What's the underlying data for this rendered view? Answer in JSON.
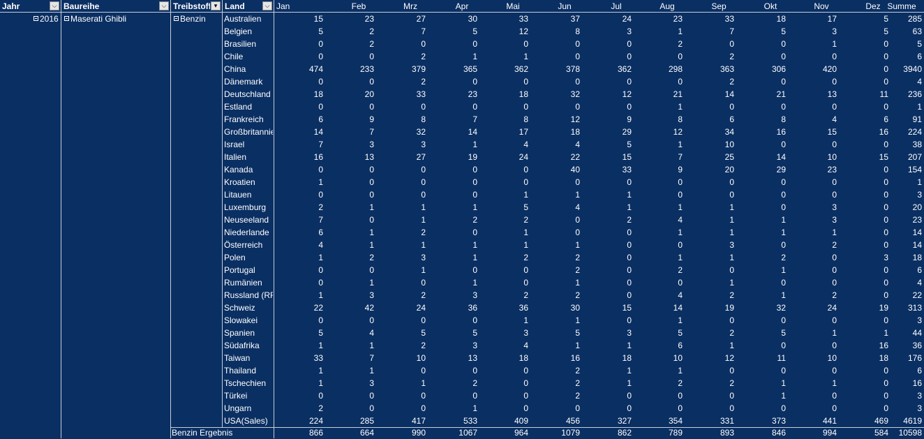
{
  "headers": {
    "jahr": "Jahr",
    "baureihe": "Baureihe",
    "treibstoff": "Treibstoff",
    "land": "Land"
  },
  "months": [
    "Jan",
    "Feb",
    "Mrz",
    "Apr",
    "Mai",
    "Jun",
    "Jul",
    "Aug",
    "Sep",
    "Okt",
    "Nov",
    "Dez",
    "Summe"
  ],
  "row_fields": {
    "jahr": "2016",
    "baureihe": "Maserati Ghibli",
    "treibstoff": "Benzin"
  },
  "rows": [
    {
      "land": "Australien",
      "values": [
        "15",
        "23",
        "27",
        "30",
        "33",
        "37",
        "24",
        "23",
        "33",
        "18",
        "17",
        "5",
        "285"
      ]
    },
    {
      "land": "Belgien",
      "values": [
        "5",
        "2",
        "7",
        "5",
        "12",
        "8",
        "3",
        "1",
        "7",
        "5",
        "3",
        "5",
        "63"
      ]
    },
    {
      "land": "Brasilien",
      "values": [
        "0",
        "2",
        "0",
        "0",
        "0",
        "0",
        "0",
        "2",
        "0",
        "0",
        "1",
        "0",
        "5"
      ]
    },
    {
      "land": "Chile",
      "values": [
        "0",
        "0",
        "2",
        "1",
        "1",
        "0",
        "0",
        "0",
        "2",
        "0",
        "0",
        "0",
        "6"
      ]
    },
    {
      "land": "China",
      "values": [
        "474",
        "233",
        "379",
        "365",
        "362",
        "378",
        "362",
        "298",
        "363",
        "306",
        "420",
        "0",
        "3940"
      ]
    },
    {
      "land": "Dänemark",
      "values": [
        "0",
        "0",
        "2",
        "0",
        "0",
        "0",
        "0",
        "0",
        "2",
        "0",
        "0",
        "0",
        "4"
      ]
    },
    {
      "land": "Deutschland",
      "values": [
        "18",
        "20",
        "33",
        "23",
        "18",
        "32",
        "12",
        "21",
        "14",
        "21",
        "13",
        "11",
        "236"
      ]
    },
    {
      "land": "Estland",
      "values": [
        "0",
        "0",
        "0",
        "0",
        "0",
        "0",
        "0",
        "1",
        "0",
        "0",
        "0",
        "0",
        "1"
      ]
    },
    {
      "land": "Frankreich",
      "values": [
        "6",
        "9",
        "8",
        "7",
        "8",
        "12",
        "9",
        "8",
        "6",
        "8",
        "4",
        "6",
        "91"
      ]
    },
    {
      "land": "Großbritannien",
      "values": [
        "14",
        "7",
        "32",
        "14",
        "17",
        "18",
        "29",
        "12",
        "34",
        "16",
        "15",
        "16",
        "224"
      ]
    },
    {
      "land": "Israel",
      "values": [
        "7",
        "3",
        "3",
        "1",
        "4",
        "4",
        "5",
        "1",
        "10",
        "0",
        "0",
        "0",
        "38"
      ]
    },
    {
      "land": "Italien",
      "values": [
        "16",
        "13",
        "27",
        "19",
        "24",
        "22",
        "15",
        "7",
        "25",
        "14",
        "10",
        "15",
        "207"
      ]
    },
    {
      "land": "Kanada",
      "values": [
        "0",
        "0",
        "0",
        "0",
        "0",
        "40",
        "33",
        "9",
        "20",
        "29",
        "23",
        "0",
        "154"
      ]
    },
    {
      "land": "Kroatien",
      "values": [
        "1",
        "0",
        "0",
        "0",
        "0",
        "0",
        "0",
        "0",
        "0",
        "0",
        "0",
        "0",
        "1"
      ]
    },
    {
      "land": "Litauen",
      "values": [
        "0",
        "0",
        "0",
        "0",
        "1",
        "1",
        "1",
        "0",
        "0",
        "0",
        "0",
        "0",
        "3"
      ]
    },
    {
      "land": "Luxemburg",
      "values": [
        "2",
        "1",
        "1",
        "1",
        "5",
        "4",
        "1",
        "1",
        "1",
        "0",
        "3",
        "0",
        "20"
      ]
    },
    {
      "land": "Neuseeland",
      "values": [
        "7",
        "0",
        "1",
        "2",
        "2",
        "0",
        "2",
        "4",
        "1",
        "1",
        "3",
        "0",
        "23"
      ]
    },
    {
      "land": "Niederlande",
      "values": [
        "6",
        "1",
        "2",
        "0",
        "1",
        "0",
        "0",
        "1",
        "1",
        "1",
        "1",
        "0",
        "14"
      ]
    },
    {
      "land": "Österreich",
      "values": [
        "4",
        "1",
        "1",
        "1",
        "1",
        "1",
        "0",
        "0",
        "3",
        "0",
        "2",
        "0",
        "14"
      ]
    },
    {
      "land": "Polen",
      "values": [
        "1",
        "2",
        "3",
        "1",
        "2",
        "2",
        "0",
        "1",
        "1",
        "2",
        "0",
        "3",
        "18"
      ]
    },
    {
      "land": "Portugal",
      "values": [
        "0",
        "0",
        "1",
        "0",
        "0",
        "2",
        "0",
        "2",
        "0",
        "1",
        "0",
        "0",
        "6"
      ]
    },
    {
      "land": "Rumänien",
      "values": [
        "0",
        "1",
        "0",
        "1",
        "0",
        "1",
        "0",
        "0",
        "1",
        "0",
        "0",
        "0",
        "4"
      ]
    },
    {
      "land": "Russland (RF)",
      "values": [
        "1",
        "3",
        "2",
        "3",
        "2",
        "2",
        "0",
        "4",
        "2",
        "1",
        "2",
        "0",
        "22"
      ]
    },
    {
      "land": "Schweiz",
      "values": [
        "22",
        "42",
        "24",
        "36",
        "36",
        "30",
        "15",
        "14",
        "19",
        "32",
        "24",
        "19",
        "313"
      ]
    },
    {
      "land": "Slowakei",
      "values": [
        "0",
        "0",
        "0",
        "0",
        "1",
        "1",
        "0",
        "1",
        "0",
        "0",
        "0",
        "0",
        "3"
      ]
    },
    {
      "land": "Spanien",
      "values": [
        "5",
        "4",
        "5",
        "5",
        "3",
        "5",
        "3",
        "5",
        "2",
        "5",
        "1",
        "1",
        "44"
      ]
    },
    {
      "land": "Südafrika",
      "values": [
        "1",
        "1",
        "2",
        "3",
        "4",
        "1",
        "1",
        "6",
        "1",
        "0",
        "0",
        "16",
        "36"
      ]
    },
    {
      "land": "Taiwan",
      "values": [
        "33",
        "7",
        "10",
        "13",
        "18",
        "16",
        "18",
        "10",
        "12",
        "11",
        "10",
        "18",
        "176"
      ]
    },
    {
      "land": "Thailand",
      "values": [
        "1",
        "1",
        "0",
        "0",
        "0",
        "2",
        "1",
        "1",
        "0",
        "0",
        "0",
        "0",
        "6"
      ]
    },
    {
      "land": "Tschechien",
      "values": [
        "1",
        "3",
        "1",
        "2",
        "0",
        "2",
        "1",
        "2",
        "2",
        "1",
        "1",
        "0",
        "16"
      ]
    },
    {
      "land": "Türkei",
      "values": [
        "0",
        "0",
        "0",
        "0",
        "0",
        "2",
        "0",
        "0",
        "0",
        "1",
        "0",
        "0",
        "3"
      ]
    },
    {
      "land": "Ungarn",
      "values": [
        "2",
        "0",
        "0",
        "1",
        "0",
        "0",
        "0",
        "0",
        "0",
        "0",
        "0",
        "0",
        "3"
      ]
    },
    {
      "land": "USA(Sales)",
      "values": [
        "224",
        "285",
        "417",
        "533",
        "409",
        "456",
        "327",
        "354",
        "331",
        "373",
        "441",
        "469",
        "4619"
      ]
    }
  ],
  "total": {
    "label": "Benzin Ergebnis",
    "values": [
      "866",
      "664",
      "990",
      "1067",
      "964",
      "1079",
      "862",
      "789",
      "893",
      "846",
      "994",
      "584",
      "10598"
    ]
  }
}
